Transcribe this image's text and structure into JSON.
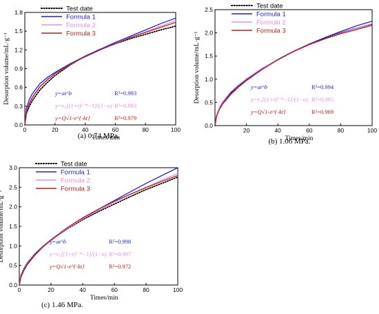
{
  "colors": {
    "test": "#000000",
    "formula1": "#1f1fd6",
    "formula2": "#e08fe6",
    "formula3": "#b8221a"
  },
  "chart_data": [
    {
      "type": "line",
      "caption": "(a) 0.74 MPa.",
      "xlabel": "Times/min",
      "ylabel": "Desorption volume/mL·g⁻¹",
      "xlim": [
        0,
        100
      ],
      "ylim": [
        0,
        1.8
      ],
      "xticks": [
        "0",
        "20",
        "40",
        "60",
        "80",
        "100"
      ],
      "yticks": [
        "0.0",
        "0.3",
        "0.6",
        "0.9",
        "1.2",
        "1.5",
        "1.8"
      ],
      "legend_position": "top-left",
      "series": [
        {
          "name": "Test date",
          "key": "test",
          "style": "dotted",
          "x": [
            0,
            1,
            3,
            5,
            10,
            15,
            20,
            30,
            40,
            50,
            60,
            70,
            80,
            90,
            100
          ],
          "y": [
            0,
            0.18,
            0.3,
            0.39,
            0.56,
            0.68,
            0.79,
            0.96,
            1.1,
            1.21,
            1.3,
            1.38,
            1.45,
            1.52,
            1.58
          ]
        },
        {
          "name": "Formula  1",
          "key": "formula1",
          "x": [
            0,
            1,
            3,
            5,
            10,
            15,
            20,
            30,
            40,
            50,
            60,
            70,
            80,
            90,
            100
          ],
          "y": [
            0,
            0.26,
            0.41,
            0.5,
            0.66,
            0.76,
            0.84,
            0.98,
            1.1,
            1.21,
            1.32,
            1.42,
            1.52,
            1.62,
            1.71
          ]
        },
        {
          "name": "Formula  2",
          "key": "formula2",
          "x": [
            0,
            1,
            3,
            5,
            10,
            15,
            20,
            30,
            40,
            50,
            60,
            70,
            80,
            90,
            100
          ],
          "y": [
            0,
            0.21,
            0.36,
            0.45,
            0.62,
            0.73,
            0.82,
            0.97,
            1.09,
            1.2,
            1.3,
            1.4,
            1.49,
            1.58,
            1.67
          ]
        },
        {
          "name": "Formula  3",
          "key": "formula3",
          "x": [
            0,
            1,
            3,
            5,
            10,
            15,
            20,
            30,
            40,
            50,
            60,
            70,
            80,
            90,
            100
          ],
          "y": [
            0,
            0.2,
            0.34,
            0.44,
            0.61,
            0.72,
            0.82,
            0.97,
            1.09,
            1.2,
            1.3,
            1.4,
            1.48,
            1.56,
            1.64
          ]
        }
      ],
      "fits": [
        {
          "key": "formula1",
          "formula": "y=at^b",
          "r2": "R²=0.993"
        },
        {
          "key": "formula2",
          "formula": "y=v₀[(1+t)¹⁻ⁿ−1]/(1−n)",
          "r2": "R²=0.993"
        },
        {
          "key": "formula3",
          "formula": "y=Q√1-e^{-kt}",
          "r2": "R²=0.979"
        }
      ]
    },
    {
      "type": "line",
      "caption": "(b) 1.06 MPa.",
      "xlabel": "Times/min",
      "ylabel": "Desorption volume/mL·g⁻¹",
      "xlim": [
        0,
        100
      ],
      "ylim": [
        0,
        2.5
      ],
      "xticks": [
        "20",
        "40",
        "60",
        "80",
        "100"
      ],
      "yticks": [
        "0.0",
        "0.5",
        "1.0",
        "1.5",
        "2.0",
        "2.5"
      ],
      "legend_position": "top-left",
      "series": [
        {
          "name": "Test date",
          "key": "test",
          "style": "dotted",
          "x": [
            0,
            1,
            3,
            5,
            10,
            15,
            20,
            30,
            40,
            50,
            60,
            70,
            80,
            90,
            100
          ],
          "y": [
            0,
            0.22,
            0.38,
            0.5,
            0.7,
            0.86,
            0.99,
            1.22,
            1.42,
            1.6,
            1.75,
            1.88,
            2.0,
            2.1,
            2.19
          ]
        },
        {
          "name": "Formula  1",
          "key": "formula1",
          "x": [
            0,
            1,
            3,
            5,
            10,
            15,
            20,
            30,
            40,
            50,
            60,
            70,
            80,
            90,
            100
          ],
          "y": [
            0,
            0.22,
            0.39,
            0.5,
            0.71,
            0.87,
            1.0,
            1.23,
            1.43,
            1.6,
            1.76,
            1.9,
            2.03,
            2.15,
            2.25
          ]
        },
        {
          "name": "Formula  2",
          "key": "formula2",
          "x": [
            0,
            1,
            3,
            5,
            10,
            15,
            20,
            30,
            40,
            50,
            60,
            70,
            80,
            90,
            100
          ],
          "y": [
            0,
            0.24,
            0.41,
            0.52,
            0.73,
            0.88,
            1.01,
            1.24,
            1.43,
            1.59,
            1.74,
            1.87,
            1.99,
            2.1,
            2.2
          ]
        },
        {
          "name": "Formula  3",
          "key": "formula3",
          "x": [
            0,
            1,
            3,
            5,
            10,
            15,
            20,
            30,
            40,
            50,
            60,
            70,
            80,
            90,
            100
          ],
          "y": [
            0,
            0.2,
            0.36,
            0.47,
            0.67,
            0.83,
            0.97,
            1.21,
            1.42,
            1.6,
            1.75,
            1.87,
            1.98,
            2.07,
            2.16
          ]
        }
      ],
      "fits": [
        {
          "key": "formula1",
          "formula": "y=at^b",
          "r2": "R²=0.994"
        },
        {
          "key": "formula2",
          "formula": "y=v₀[(1+t)¹⁻ⁿ−1]/(1−n)",
          "r2": "R²=0.995"
        },
        {
          "key": "formula3",
          "formula": "y=Q√1-e^{-kt}",
          "r2": "R²=0.969"
        }
      ]
    },
    {
      "type": "line",
      "caption": "(c) 1.46 MPa.",
      "xlabel": "Times/min",
      "ylabel": "Desorption volume/mL·g⁻¹",
      "xlim": [
        0,
        100
      ],
      "ylim": [
        0,
        3.0
      ],
      "xticks": [
        "0",
        "20",
        "40",
        "60",
        "80",
        "100"
      ],
      "yticks": [
        "0.0",
        "0.5",
        "1.0",
        "1.5",
        "2.0",
        "2.5",
        "3.0"
      ],
      "legend_position": "top-left",
      "series": [
        {
          "name": "Test date",
          "key": "test",
          "style": "dotted",
          "x": [
            0,
            1,
            3,
            5,
            10,
            15,
            20,
            30,
            40,
            50,
            60,
            70,
            80,
            90,
            100
          ],
          "y": [
            0,
            0.24,
            0.42,
            0.56,
            0.8,
            0.99,
            1.15,
            1.43,
            1.67,
            1.88,
            2.07,
            2.26,
            2.44,
            2.6,
            2.76
          ]
        },
        {
          "name": "Formula  1",
          "key": "formula1",
          "x": [
            0,
            1,
            3,
            5,
            10,
            15,
            20,
            30,
            40,
            50,
            60,
            70,
            80,
            90,
            100
          ],
          "y": [
            0,
            0.2,
            0.38,
            0.52,
            0.77,
            0.97,
            1.14,
            1.44,
            1.7,
            1.94,
            2.16,
            2.38,
            2.6,
            2.8,
            3.0
          ]
        },
        {
          "name": "Formula  2",
          "key": "formula2",
          "x": [
            0,
            1,
            3,
            5,
            10,
            15,
            20,
            30,
            40,
            50,
            60,
            70,
            80,
            90,
            100
          ],
          "y": [
            0,
            0.23,
            0.41,
            0.55,
            0.79,
            0.98,
            1.15,
            1.44,
            1.69,
            1.91,
            2.12,
            2.32,
            2.5,
            2.68,
            2.85
          ]
        },
        {
          "name": "Formula  3",
          "key": "formula3",
          "x": [
            0,
            1,
            3,
            5,
            10,
            15,
            20,
            30,
            40,
            50,
            60,
            70,
            80,
            90,
            100
          ],
          "y": [
            0,
            0.22,
            0.4,
            0.54,
            0.79,
            0.99,
            1.16,
            1.46,
            1.72,
            1.94,
            2.14,
            2.32,
            2.49,
            2.65,
            2.8
          ]
        }
      ],
      "fits": [
        {
          "key": "formula1",
          "formula": "y=at^b",
          "r2": "R²=0.998"
        },
        {
          "key": "formula2",
          "formula": "y=v₀[(1+t)¹⁻ⁿ−1]/(1−n)",
          "r2": "R²=0.997"
        },
        {
          "key": "formula3",
          "formula": "y=Q√1-e^{-kt}",
          "r2": "R²=0.972"
        }
      ]
    }
  ]
}
